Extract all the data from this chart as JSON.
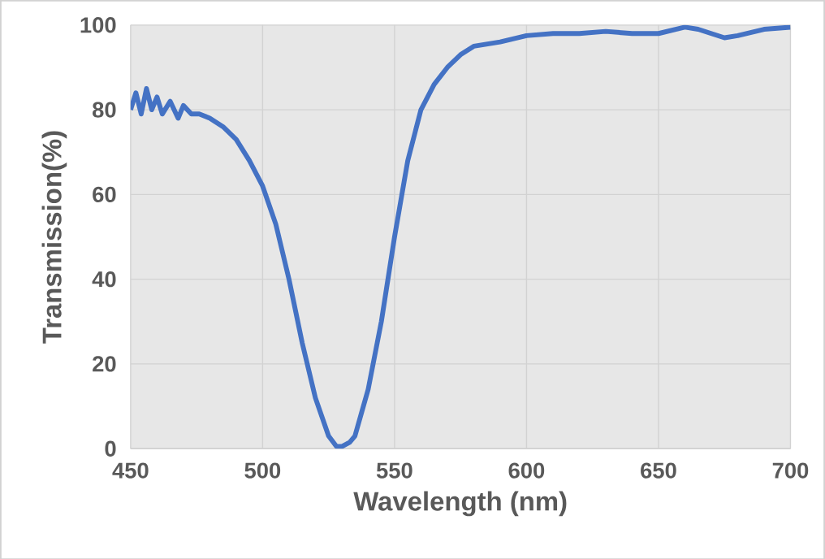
{
  "chart_data": {
    "type": "line",
    "xlabel": "Wavelength (nm)",
    "ylabel": "Transmission(%)",
    "xlim": [
      450,
      700
    ],
    "ylim": [
      0,
      100
    ],
    "xticks": [
      450,
      500,
      550,
      600,
      650,
      700
    ],
    "yticks": [
      0,
      20,
      40,
      60,
      80,
      100
    ],
    "grid": true,
    "series": [
      {
        "color": "#4472c4",
        "x": [
          450,
          452,
          454,
          456,
          458,
          460,
          462,
          465,
          468,
          470,
          473,
          476,
          480,
          485,
          490,
          495,
          500,
          505,
          510,
          515,
          520,
          525,
          528,
          530,
          533,
          535,
          540,
          545,
          550,
          555,
          560,
          565,
          570,
          575,
          580,
          585,
          590,
          600,
          610,
          620,
          630,
          640,
          650,
          660,
          665,
          670,
          675,
          680,
          690,
          700
        ],
        "values": [
          80,
          84,
          79,
          85,
          80,
          83,
          79,
          82,
          78,
          81,
          79,
          79,
          78,
          76,
          73,
          68,
          62,
          53,
          40,
          25,
          12,
          3,
          0.5,
          0.5,
          1.5,
          3,
          14,
          30,
          50,
          68,
          80,
          86,
          90,
          93,
          95,
          95.5,
          96,
          97.5,
          98,
          98,
          98.5,
          98,
          98,
          99.5,
          99,
          98,
          97,
          97.5,
          99,
          99.5
        ]
      }
    ]
  }
}
